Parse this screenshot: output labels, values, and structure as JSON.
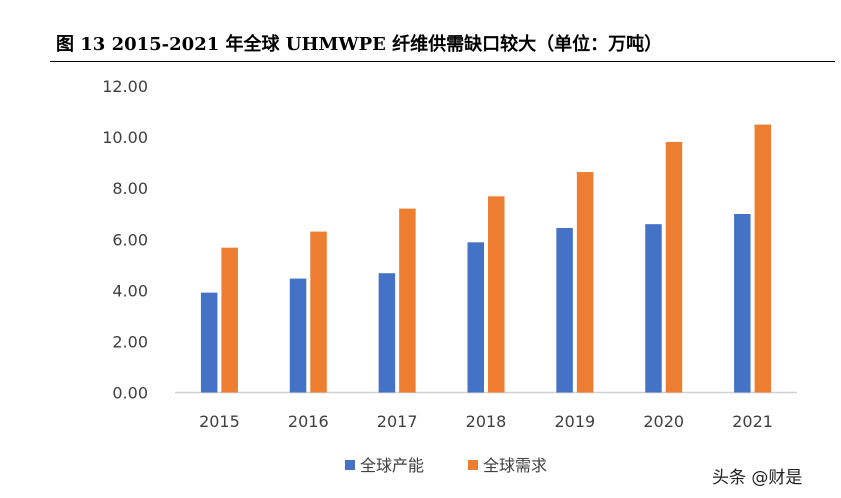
{
  "chart_data": {
    "type": "bar",
    "title": "图 13 2015-2021 年全球 UHMWPE 纤维供需缺口较大（单位：万吨）",
    "categories": [
      "2015",
      "2016",
      "2017",
      "2018",
      "2019",
      "2020",
      "2021"
    ],
    "series": [
      {
        "name": "全球产能",
        "color": "#4472C4",
        "values": [
          3.91,
          4.46,
          4.67,
          5.88,
          6.44,
          6.59,
          6.99
        ]
      },
      {
        "name": "全球需求",
        "color": "#ED7D31",
        "values": [
          5.67,
          6.3,
          7.2,
          7.68,
          8.63,
          9.81,
          10.49
        ]
      }
    ],
    "ylim": [
      0,
      12
    ],
    "yticks": [
      "0.00",
      "2.00",
      "4.00",
      "6.00",
      "8.00",
      "10.00",
      "12.00"
    ],
    "grid": false,
    "legend": "bottom"
  },
  "watermark": "头条 @财是"
}
